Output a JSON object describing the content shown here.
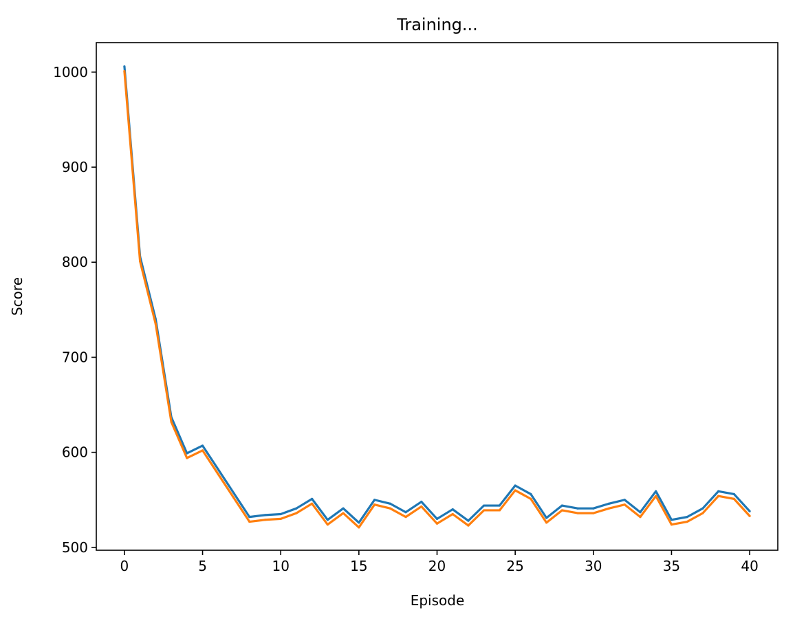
{
  "chart_data": {
    "type": "line",
    "title": "Training...",
    "xlabel": "Episode",
    "ylabel": "Score",
    "xlim": [
      -1.8,
      41.8
    ],
    "ylim": [
      497,
      1031
    ],
    "xticks": [
      0,
      5,
      10,
      15,
      20,
      25,
      30,
      35,
      40
    ],
    "yticks": [
      500,
      600,
      700,
      800,
      900,
      1000
    ],
    "grid": false,
    "legend": "none",
    "x": [
      0,
      1,
      2,
      3,
      4,
      5,
      6,
      7,
      8,
      9,
      10,
      11,
      12,
      13,
      14,
      15,
      16,
      17,
      18,
      19,
      20,
      21,
      22,
      23,
      24,
      25,
      26,
      27,
      28,
      29,
      30,
      31,
      32,
      33,
      34,
      35,
      36,
      37,
      38,
      39,
      40
    ],
    "series": [
      {
        "color": "#1f77b4",
        "values": [
          1006,
          806,
          740,
          637,
          599,
          607,
          582,
          557,
          532,
          534,
          535,
          541,
          551,
          529,
          541,
          526,
          550,
          546,
          537,
          548,
          530,
          540,
          528,
          544,
          544,
          565,
          556,
          531,
          544,
          541,
          541,
          546,
          550,
          537,
          559,
          529,
          532,
          541,
          559,
          556,
          538
        ]
      },
      {
        "color": "#ff7f0e",
        "values": [
          1001,
          801,
          735,
          632,
          594,
          602,
          577,
          552,
          527,
          529,
          530,
          536,
          546,
          524,
          536,
          521,
          545,
          541,
          532,
          543,
          525,
          535,
          523,
          539,
          539,
          560,
          551,
          526,
          539,
          536,
          536,
          541,
          545,
          532,
          554,
          524,
          527,
          536,
          554,
          551,
          533
        ]
      }
    ]
  }
}
